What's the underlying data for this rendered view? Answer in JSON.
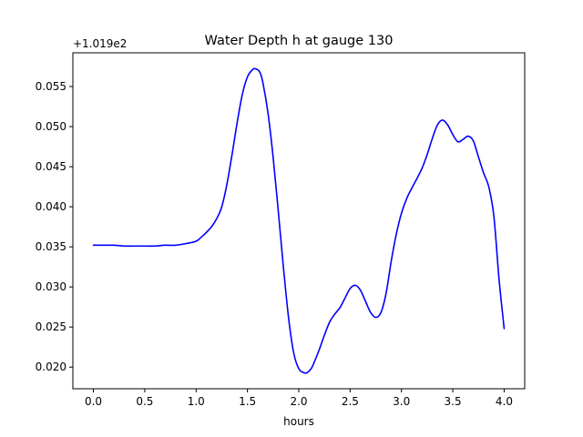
{
  "chart_data": {
    "type": "line",
    "title": "Water Depth h at gauge 130",
    "xlabel": "hours",
    "ylabel": "",
    "offset_text": "+1.019e2",
    "xlim": [
      -0.2,
      4.2
    ],
    "ylim": [
      0.0173,
      0.0592
    ],
    "x_ticks": [
      0.0,
      0.5,
      1.0,
      1.5,
      2.0,
      2.5,
      3.0,
      3.5,
      4.0
    ],
    "x_tick_labels": [
      "0.0",
      "0.5",
      "1.0",
      "1.5",
      "2.0",
      "2.5",
      "3.0",
      "3.5",
      "4.0"
    ],
    "y_ticks": [
      0.02,
      0.025,
      0.03,
      0.035,
      0.04,
      0.045,
      0.05,
      0.055
    ],
    "y_tick_labels": [
      "0.020",
      "0.025",
      "0.030",
      "0.035",
      "0.040",
      "0.045",
      "0.050",
      "0.055"
    ],
    "grid": false,
    "series": [
      {
        "color": "#0000ff",
        "x": [
          0.0,
          0.1,
          0.2,
          0.3,
          0.4,
          0.5,
          0.6,
          0.7,
          0.8,
          0.9,
          1.0,
          1.05,
          1.1,
          1.15,
          1.2,
          1.25,
          1.3,
          1.35,
          1.4,
          1.45,
          1.5,
          1.55,
          1.58,
          1.62,
          1.65,
          1.7,
          1.75,
          1.8,
          1.85,
          1.9,
          1.95,
          2.0,
          2.05,
          2.08,
          2.12,
          2.15,
          2.2,
          2.25,
          2.3,
          2.35,
          2.4,
          2.45,
          2.5,
          2.55,
          2.6,
          2.65,
          2.7,
          2.75,
          2.8,
          2.85,
          2.9,
          2.95,
          3.0,
          3.05,
          3.1,
          3.15,
          3.2,
          3.25,
          3.3,
          3.35,
          3.4,
          3.45,
          3.5,
          3.55,
          3.6,
          3.65,
          3.7,
          3.75,
          3.8,
          3.85,
          3.9,
          3.95,
          4.0
        ],
        "y": [
          0.0352,
          0.0352,
          0.0352,
          0.0351,
          0.0351,
          0.0351,
          0.0351,
          0.0352,
          0.0352,
          0.0354,
          0.0357,
          0.0362,
          0.0368,
          0.0375,
          0.0385,
          0.04,
          0.0428,
          0.0465,
          0.0505,
          0.054,
          0.0562,
          0.0571,
          0.0572,
          0.0568,
          0.0555,
          0.0517,
          0.0462,
          0.0395,
          0.0325,
          0.0262,
          0.0218,
          0.0198,
          0.0193,
          0.0193,
          0.0198,
          0.0206,
          0.0222,
          0.024,
          0.0256,
          0.0266,
          0.0274,
          0.0286,
          0.0298,
          0.0302,
          0.0296,
          0.0282,
          0.0268,
          0.0262,
          0.0268,
          0.0292,
          0.0332,
          0.0366,
          0.0392,
          0.041,
          0.0423,
          0.0435,
          0.0448,
          0.0465,
          0.0485,
          0.0502,
          0.0508,
          0.0502,
          0.049,
          0.0481,
          0.0484,
          0.0488,
          0.0482,
          0.0462,
          0.0442,
          0.0425,
          0.0388,
          0.031,
          0.0248
        ]
      }
    ]
  }
}
